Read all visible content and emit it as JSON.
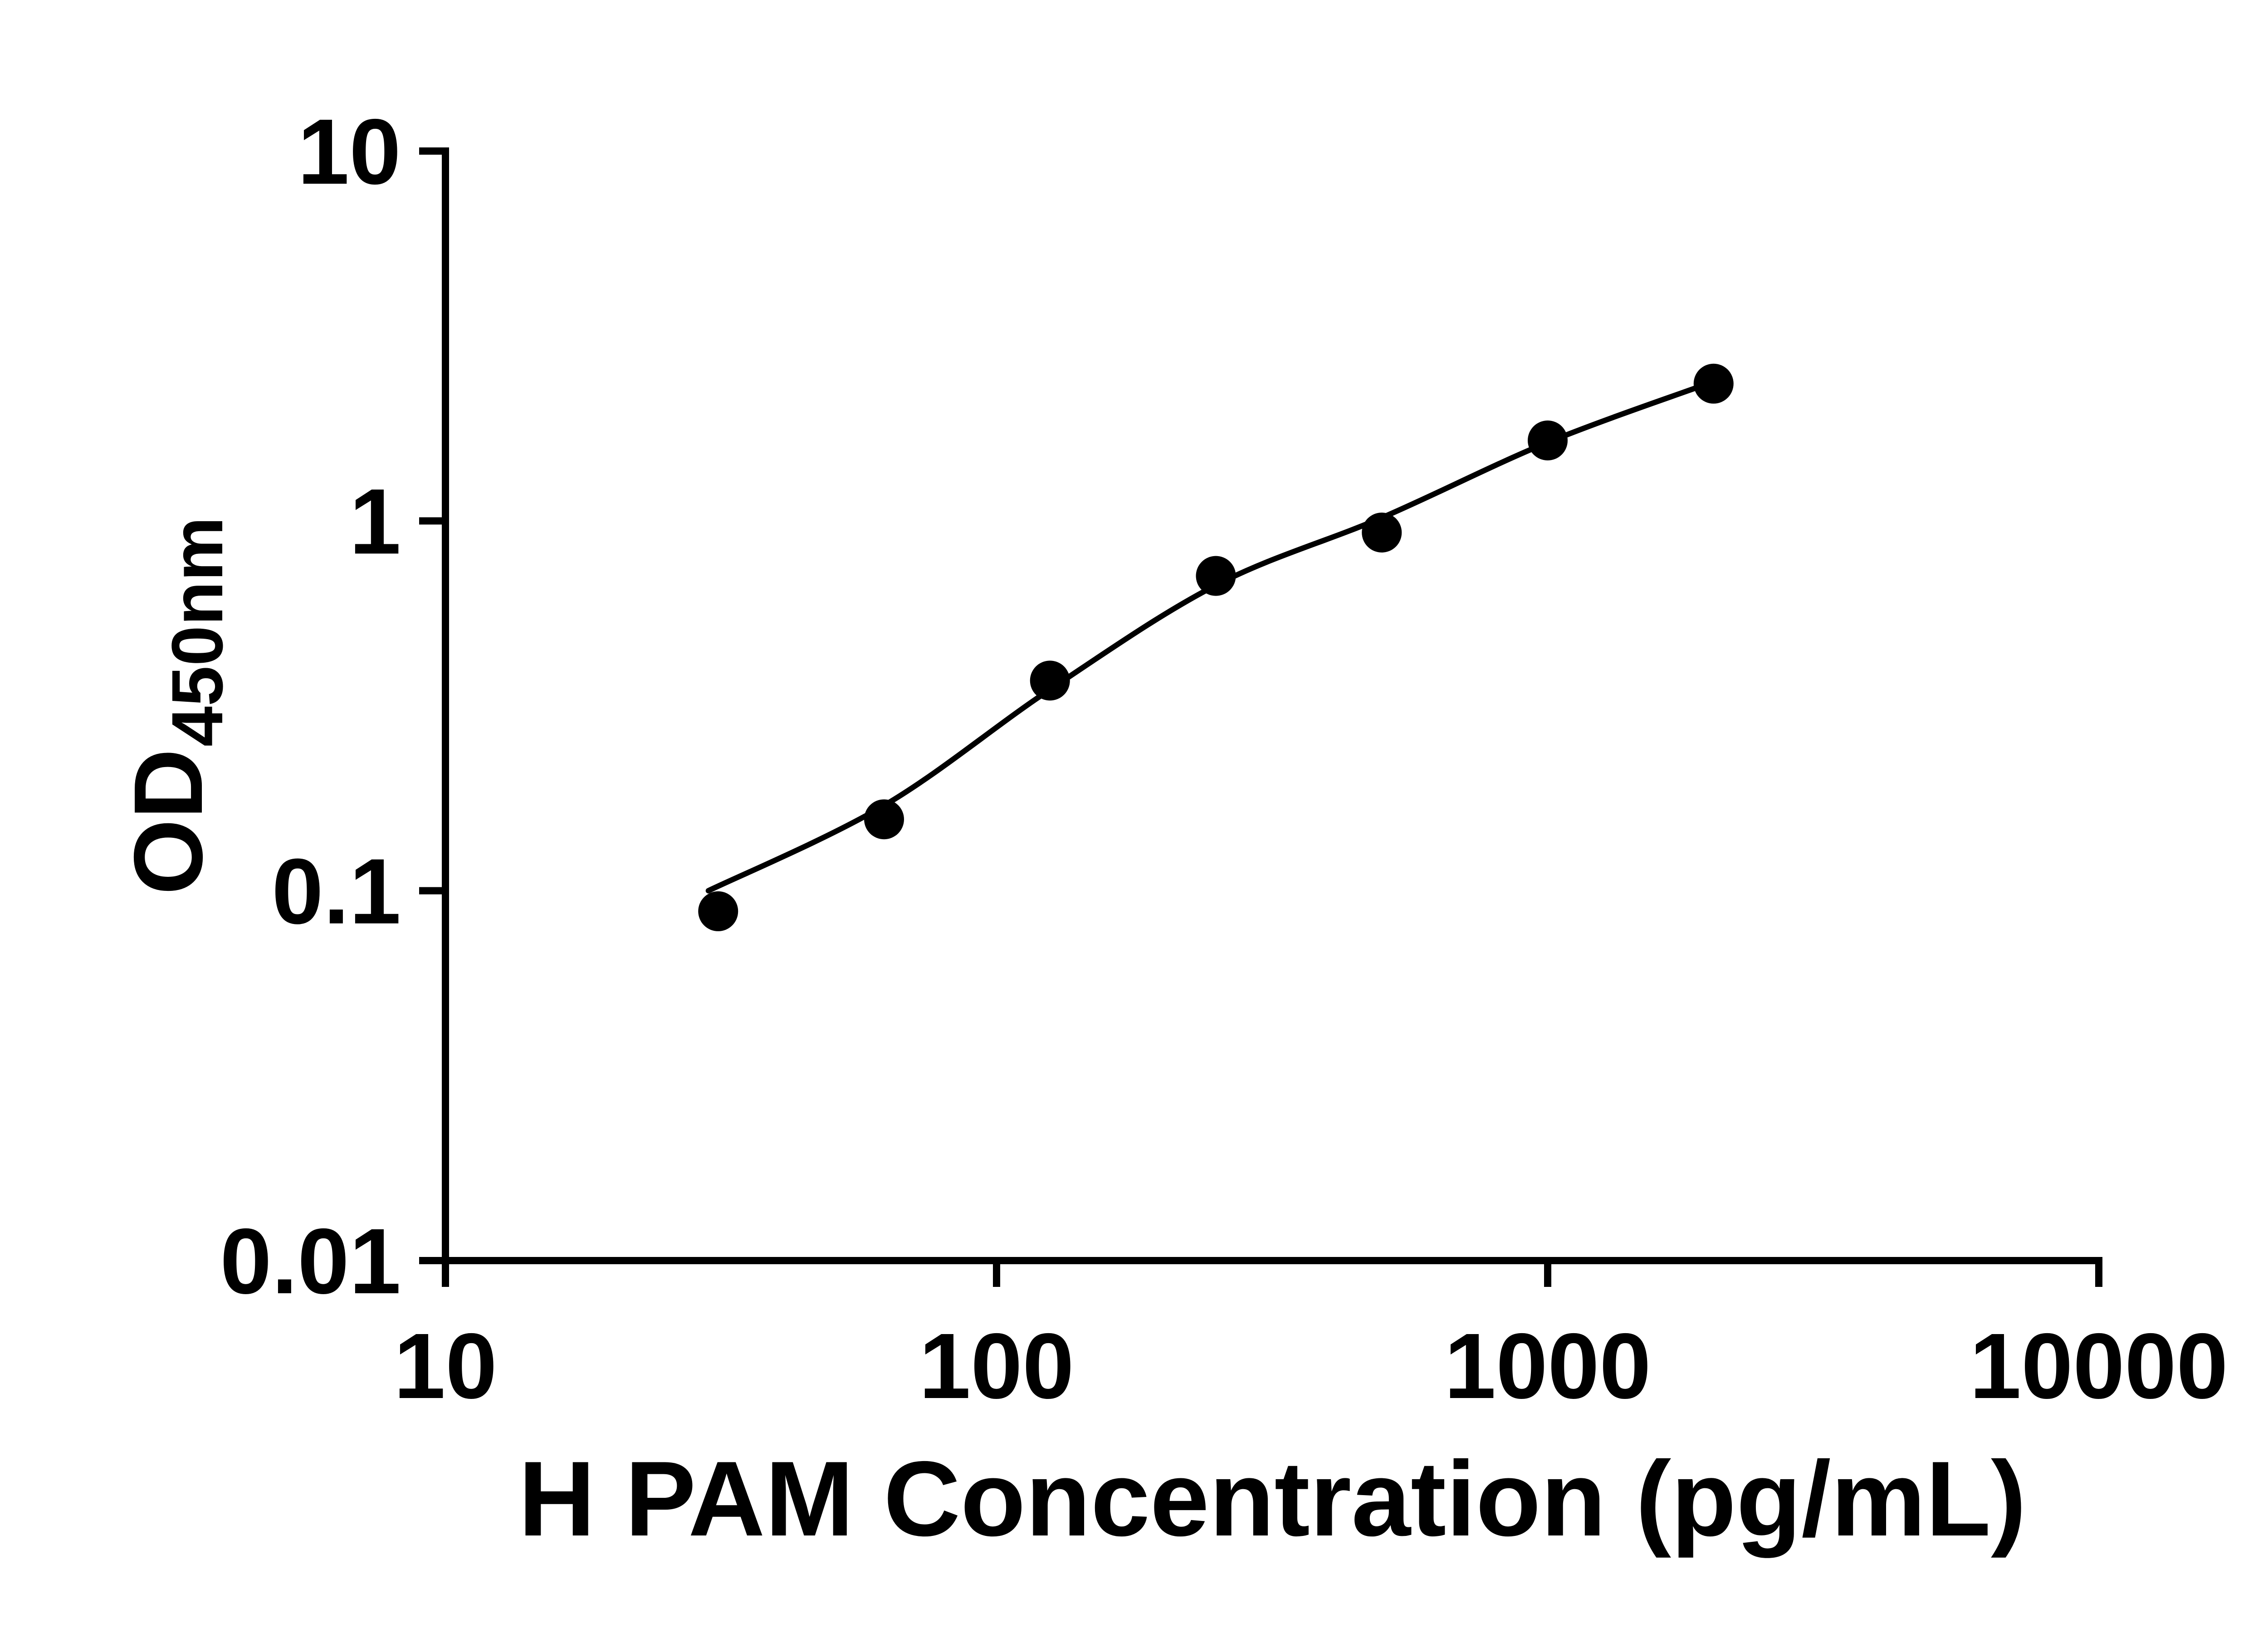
{
  "chart_data": {
    "type": "scatter",
    "title": "",
    "xlabel": "H PAM Concentration (pg/mL)",
    "ylabel_main": "OD",
    "ylabel_sub": "450nm",
    "x_scale": "log",
    "y_scale": "log",
    "xlim": [
      10,
      10000
    ],
    "ylim": [
      0.01,
      10
    ],
    "x_ticks": [
      10,
      100,
      1000,
      10000
    ],
    "x_tick_labels": [
      "10",
      "100",
      "1000",
      "10000"
    ],
    "y_ticks": [
      10,
      1,
      0.1,
      0.01
    ],
    "y_tick_labels": [
      "10",
      "1",
      "0.1",
      "0.01"
    ],
    "grid": false,
    "legend": "none",
    "points": [
      {
        "x": 31.25,
        "y": 0.088
      },
      {
        "x": 62.5,
        "y": 0.156
      },
      {
        "x": 125,
        "y": 0.37
      },
      {
        "x": 250,
        "y": 0.71
      },
      {
        "x": 500,
        "y": 0.93
      },
      {
        "x": 1000,
        "y": 1.65
      },
      {
        "x": 2000,
        "y": 2.35
      }
    ],
    "fit_curve": [
      {
        "x": 30,
        "y": 0.1
      },
      {
        "x": 62.5,
        "y": 0.17
      },
      {
        "x": 125,
        "y": 0.35
      },
      {
        "x": 250,
        "y": 0.67
      },
      {
        "x": 500,
        "y": 1.02
      },
      {
        "x": 1000,
        "y": 1.63
      },
      {
        "x": 2000,
        "y": 2.38
      }
    ],
    "colors": {
      "points": "#000000",
      "curve": "#000000",
      "axis": "#000000",
      "background": "#ffffff"
    }
  }
}
